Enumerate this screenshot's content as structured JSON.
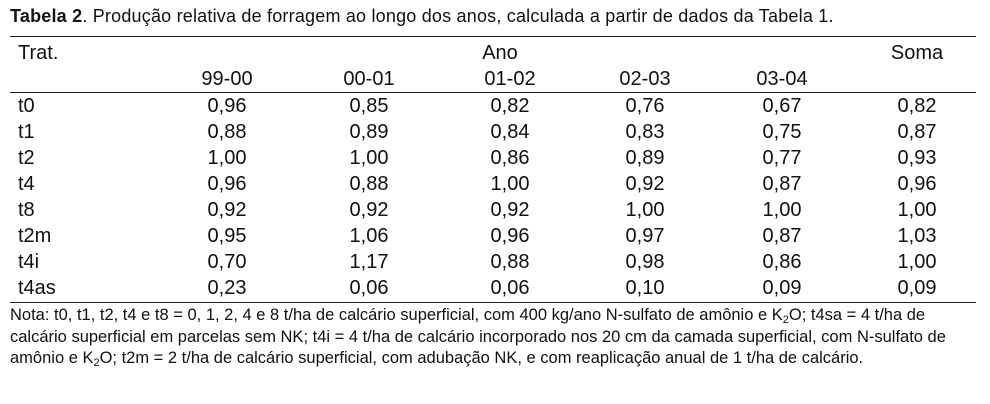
{
  "caption": {
    "label": "Tabela 2",
    "text": ". Produção relativa de forragem ao longo dos anos, calculada a partir de dados da Tabela 1."
  },
  "header": {
    "trat": "Trat.",
    "ano": "Ano",
    "soma": "Soma",
    "years": [
      "99-00",
      "00-01",
      "01-02",
      "02-03",
      "03-04"
    ]
  },
  "rows": [
    {
      "trat": "t0",
      "values": [
        "0,96",
        "0,85",
        "0,82",
        "0,76",
        "0,67"
      ],
      "soma": "0,82"
    },
    {
      "trat": "t1",
      "values": [
        "0,88",
        "0,89",
        "0,84",
        "0,83",
        "0,75"
      ],
      "soma": "0,87"
    },
    {
      "trat": "t2",
      "values": [
        "1,00",
        "1,00",
        "0,86",
        "0,89",
        "0,77"
      ],
      "soma": "0,93"
    },
    {
      "trat": "t4",
      "values": [
        "0,96",
        "0,88",
        "1,00",
        "0,92",
        "0,87"
      ],
      "soma": "0,96"
    },
    {
      "trat": "t8",
      "values": [
        "0,92",
        "0,92",
        "0,92",
        "1,00",
        "1,00"
      ],
      "soma": "1,00"
    },
    {
      "trat": "t2m",
      "values": [
        "0,95",
        "1,06",
        "0,96",
        "0,97",
        "0,87"
      ],
      "soma": "1,03"
    },
    {
      "trat": "t4i",
      "values": [
        "0,70",
        "1,17",
        "0,88",
        "0,98",
        "0,86"
      ],
      "soma": "1,00"
    },
    {
      "trat": "t4as",
      "values": [
        "0,23",
        "0,06",
        "0,06",
        "0,10",
        "0,09"
      ],
      "soma": "0,09"
    }
  ],
  "note": {
    "part1": "Nota: t0, t1, t2, t4 e t8 = 0, 1, 2, 4 e 8 t/ha de calcário superficial, com 400 kg/ano N-sulfato de amônio e K",
    "sub1": "2",
    "part2": "O; t4sa = 4 t/ha de calcário superficial em parcelas sem NK; t4i = 4 t/ha de calcário incorporado nos 20 cm da camada superficial, com N-sulfato de amônio e K",
    "sub2": "2",
    "part3": "O; t2m = 2 t/ha de calcário superficial, com adubação NK, e com reaplicação anual de 1 t/ha de calcário."
  }
}
